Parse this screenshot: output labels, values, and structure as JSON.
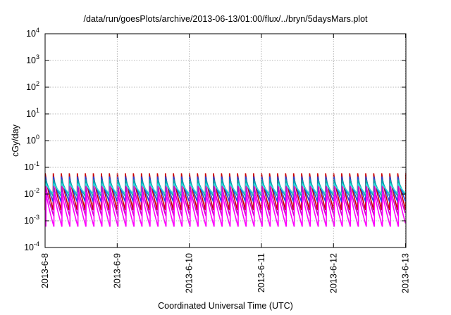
{
  "chart_data": {
    "type": "line",
    "title": "/data/run/goesPlots/archive/2013-06-13/01:00/flux/../bryn/5daysMars.plot",
    "xlabel": "Coordinated Universal Time (UTC)",
    "ylabel": "cGy/day",
    "y_scale": "log",
    "ylim": [
      0.0001,
      10000
    ],
    "y_ticks": [
      {
        "base": "10",
        "exp": "4"
      },
      {
        "base": "10",
        "exp": "3"
      },
      {
        "base": "10",
        "exp": "2"
      },
      {
        "base": "10",
        "exp": "1"
      },
      {
        "base": "10",
        "exp": "0"
      },
      {
        "base": "10",
        "exp": "-1"
      },
      {
        "base": "10",
        "exp": "-2"
      },
      {
        "base": "10",
        "exp": "-3"
      },
      {
        "base": "10",
        "exp": "-4"
      }
    ],
    "x_ticks": [
      "2013-6-8",
      "2013-6-9",
      "2013-6-10",
      "2013-6-11",
      "2013-6-12",
      "2013-6-13"
    ],
    "xlim_days": [
      "2013-6-8",
      "2013-6-13 00:06"
    ],
    "grid": true,
    "legend": "none",
    "oscillation_periods_per_day": 9,
    "series": [
      {
        "color": "#cc0000",
        "peak": 0.06,
        "trough": 0.0025
      },
      {
        "color": "#2244dd",
        "peak": 0.045,
        "trough": 0.005
      },
      {
        "color": "#00aaaa",
        "peak": 0.035,
        "trough": 0.008
      },
      {
        "color": "#33dddd",
        "peak": 0.025,
        "trough": 0.01
      },
      {
        "color": "#cc00cc",
        "peak": 0.02,
        "trough": 0.0015
      },
      {
        "color": "#ff00ff",
        "peak": 0.012,
        "trough": 0.0006
      }
    ]
  }
}
